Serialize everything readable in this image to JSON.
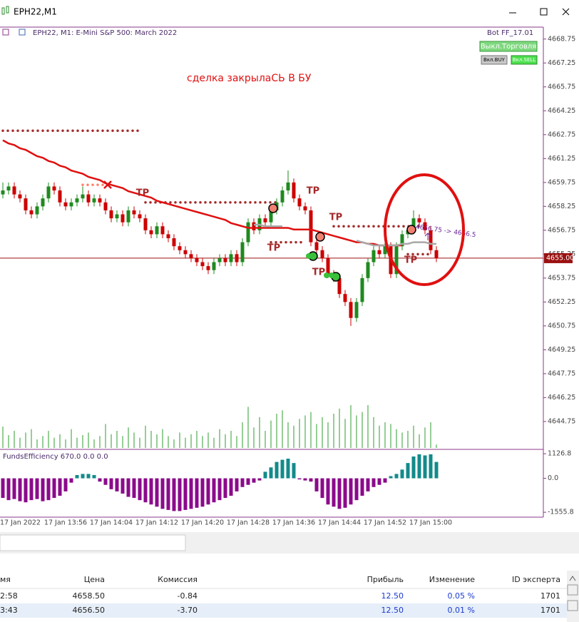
{
  "window": {
    "title": "EPH22,M1"
  },
  "chart_data": {
    "type": "candlestick",
    "title": "EPH22, M1:  E-Mini S&P 500: March 2022",
    "annotation": "сделка закрылаСЬ В БУ",
    "expert": "Bot FF_17.01",
    "buttons": [
      "Выкл.Торговля",
      "Вкл.BUY",
      "Вкл.SELL"
    ],
    "trade_note": "4656.75 -> 4656.5",
    "tp_labels": [
      "TP",
      "TP",
      "TP",
      "TP",
      "TP",
      "TP"
    ],
    "categories": [
      null,
      null,
      null,
      "17 Jan 2022",
      null,
      null,
      null,
      null,
      null,
      null,
      null,
      "17 Jan 13:56",
      null,
      null,
      null,
      null,
      null,
      null,
      null,
      "17 Jan 14:04",
      null,
      null,
      null,
      null,
      null,
      null,
      null,
      "17 Jan 14:12",
      null,
      null,
      null,
      null,
      null,
      null,
      null,
      "17 Jan 14:20",
      null,
      null,
      null,
      null,
      null,
      null,
      null,
      "17 Jan 14:28",
      null,
      null,
      null,
      null,
      null,
      null,
      null,
      "17 Jan 14:36",
      null,
      null,
      null,
      null,
      null,
      null,
      null,
      "17 Jan 14:44",
      null,
      null,
      null,
      null,
      null,
      null,
      null,
      "17 Jan 14:52",
      null,
      null,
      null,
      null,
      null,
      null,
      null,
      "17 Jan 15:00",
      null
    ],
    "ohlc": [
      [
        4659.0,
        4659.75,
        4658.75,
        4659.25
      ],
      [
        4659.25,
        4659.75,
        4659.0,
        4659.5
      ],
      [
        4659.5,
        4659.75,
        4658.75,
        4659.0
      ],
      [
        4659.0,
        4659.25,
        4658.5,
        4658.75
      ],
      [
        4658.75,
        4659.0,
        4657.75,
        4658.0
      ],
      [
        4658.0,
        4658.25,
        4657.5,
        4657.75
      ],
      [
        4657.75,
        4658.5,
        4657.5,
        4658.25
      ],
      [
        4658.25,
        4659.0,
        4658.0,
        4658.75
      ],
      [
        4658.75,
        4659.75,
        4658.5,
        4659.5
      ],
      [
        4659.5,
        4659.75,
        4659.0,
        4659.25
      ],
      [
        4659.25,
        4659.5,
        4658.25,
        4658.5
      ],
      [
        4658.5,
        4658.75,
        4658.0,
        4658.25
      ],
      [
        4658.25,
        4658.75,
        4658.0,
        4658.5
      ],
      [
        4658.5,
        4659.0,
        4658.25,
        4658.75
      ],
      [
        4658.75,
        4659.5,
        4658.5,
        4659.0
      ],
      [
        4659.0,
        4659.25,
        4658.25,
        4658.5
      ],
      [
        4658.5,
        4659.0,
        4658.25,
        4658.75
      ],
      [
        4658.75,
        4659.0,
        4658.25,
        4658.5
      ],
      [
        4658.5,
        4658.75,
        4657.75,
        4658.0
      ],
      [
        4658.0,
        4658.25,
        4657.25,
        4657.5
      ],
      [
        4657.5,
        4658.0,
        4657.25,
        4657.75
      ],
      [
        4657.75,
        4658.0,
        4657.0,
        4657.25
      ],
      [
        4657.25,
        4658.25,
        4657.0,
        4658.0
      ],
      [
        4658.0,
        4658.25,
        4657.5,
        4657.75
      ],
      [
        4657.75,
        4658.0,
        4657.25,
        4657.5
      ],
      [
        4657.5,
        4657.75,
        4656.5,
        4656.75
      ],
      [
        4656.75,
        4657.0,
        4656.25,
        4656.5
      ],
      [
        4656.5,
        4657.25,
        4656.25,
        4657.0
      ],
      [
        4657.0,
        4657.25,
        4656.25,
        4656.5
      ],
      [
        4656.5,
        4656.75,
        4656.0,
        4656.25
      ],
      [
        4656.25,
        4656.5,
        4655.5,
        4655.75
      ],
      [
        4655.75,
        4656.0,
        4655.25,
        4655.5
      ],
      [
        4655.5,
        4655.75,
        4655.0,
        4655.25
      ],
      [
        4655.25,
        4655.5,
        4654.75,
        4655.0
      ],
      [
        4655.0,
        4655.25,
        4654.5,
        4654.75
      ],
      [
        4654.75,
        4655.0,
        4654.25,
        4654.5
      ],
      [
        4654.5,
        4654.75,
        4654.0,
        4654.25
      ],
      [
        4654.25,
        4655.0,
        4654.0,
        4654.75
      ],
      [
        4654.75,
        4655.25,
        4654.5,
        4655.0
      ],
      [
        4655.0,
        4655.25,
        4654.5,
        4654.75
      ],
      [
        4654.75,
        4655.5,
        4654.5,
        4655.25
      ],
      [
        4655.25,
        4655.5,
        4654.5,
        4654.75
      ],
      [
        4654.75,
        4656.25,
        4654.5,
        4656.0
      ],
      [
        4656.0,
        4657.5,
        4655.75,
        4657.25
      ],
      [
        4657.25,
        4657.5,
        4656.5,
        4656.75
      ],
      [
        4656.75,
        4657.75,
        4656.5,
        4657.5
      ],
      [
        4657.5,
        4657.75,
        4657.0,
        4657.25
      ],
      [
        4657.25,
        4658.25,
        4657.0,
        4658.0
      ],
      [
        4658.0,
        4658.75,
        4657.75,
        4658.5
      ],
      [
        4658.5,
        4659.5,
        4658.25,
        4659.25
      ],
      [
        4659.25,
        4660.5,
        4659.0,
        4659.75
      ],
      [
        4659.75,
        4660.0,
        4658.5,
        4658.75
      ],
      [
        4658.75,
        4659.0,
        4658.0,
        4658.25
      ],
      [
        4658.25,
        4658.5,
        4657.75,
        4658.0
      ],
      [
        4658.0,
        4658.25,
        4655.75,
        4656.0
      ],
      [
        4656.0,
        4656.25,
        4655.25,
        4655.5
      ],
      [
        4655.5,
        4655.75,
        4654.75,
        4655.0
      ],
      [
        4655.0,
        4655.25,
        4653.75,
        4654.0
      ],
      [
        4654.0,
        4654.25,
        4653.5,
        4653.75
      ],
      [
        4653.75,
        4654.0,
        4652.5,
        4652.75
      ],
      [
        4652.75,
        4653.0,
        4652.0,
        4652.25
      ],
      [
        4652.25,
        4652.5,
        4650.75,
        4651.25
      ],
      [
        4651.25,
        4652.5,
        4651.0,
        4652.25
      ],
      [
        4652.25,
        4654.0,
        4652.0,
        4653.75
      ],
      [
        4653.75,
        4655.0,
        4653.5,
        4654.75
      ],
      [
        4654.75,
        4655.75,
        4654.5,
        4655.5
      ],
      [
        4655.5,
        4655.75,
        4655.0,
        4655.25
      ],
      [
        4655.25,
        4656.0,
        4655.0,
        4655.75
      ],
      [
        4655.75,
        4656.0,
        4653.75,
        4654.0
      ],
      [
        4654.0,
        4656.0,
        4653.75,
        4655.75
      ],
      [
        4655.75,
        4656.75,
        4655.5,
        4656.5
      ],
      [
        4656.5,
        4657.0,
        4656.25,
        4656.75
      ],
      [
        4656.75,
        4658.0,
        4656.5,
        4657.5
      ],
      [
        4657.5,
        4657.75,
        4657.0,
        4657.25
      ],
      [
        4657.25,
        4657.5,
        4656.5,
        4656.75
      ],
      [
        4656.75,
        4657.0,
        4655.25,
        4655.5
      ],
      [
        4655.5,
        4655.75,
        4654.75,
        4655.0
      ]
    ],
    "up_color": "#1f8a1f",
    "down_color": "#cc0000",
    "ylim": [
      4643.0,
      4669.5
    ],
    "yticks": [
      4668.75,
      4667.25,
      4665.75,
      4664.25,
      4662.75,
      4661.25,
      4659.75,
      4658.25,
      4656.75,
      4655.25,
      4653.75,
      4652.25,
      4650.75,
      4649.25,
      4647.75,
      4646.25,
      4644.75
    ],
    "current_price": {
      "value": 4655,
      "label": "4655.00"
    },
    "ma": {
      "color": "#e01010",
      "values": [
        4662.4,
        4662.2,
        4662.1,
        4661.9,
        4661.8,
        4661.6,
        4661.4,
        4661.3,
        4661.1,
        4661.0,
        4660.8,
        4660.7,
        4660.5,
        4660.4,
        4660.3,
        4660.1,
        4660.0,
        4659.9,
        4659.7,
        4659.6,
        4659.5,
        4659.4,
        4659.2,
        4659.1,
        4659.0,
        4658.9,
        4658.8,
        4658.6,
        4658.5,
        4658.4,
        4658.3,
        4658.2,
        4658.1,
        4658.0,
        4657.9,
        4657.8,
        4657.7,
        4657.6,
        4657.5,
        4657.4,
        4657.2,
        4657.1,
        4657.0,
        4656.9,
        4656.9,
        4656.9,
        4656.9,
        4656.9,
        4656.9,
        4656.9,
        4656.9,
        4656.8,
        4656.8,
        4656.8,
        4656.8,
        4656.7,
        4656.6,
        4656.5,
        4656.4,
        4656.3,
        4656.2,
        4656.1,
        4656.0,
        4656.0,
        4655.9,
        4655.9,
        4655.8,
        4655.8,
        4655.8,
        4655.8,
        4655.8,
        null,
        null,
        null,
        null,
        null,
        null
      ]
    },
    "trail": {
      "color": "#a8a8a8",
      "values": [
        null,
        null,
        null,
        null,
        null,
        null,
        null,
        null,
        null,
        null,
        null,
        null,
        null,
        null,
        null,
        null,
        null,
        null,
        null,
        null,
        null,
        null,
        null,
        null,
        null,
        null,
        null,
        null,
        null,
        null,
        null,
        null,
        null,
        null,
        null,
        null,
        null,
        null,
        null,
        null,
        null,
        null,
        null,
        null,
        4657.1,
        4657.1,
        4657.0,
        4657.0,
        4657.0,
        4657.0,
        null,
        null,
        null,
        null,
        null,
        null,
        null,
        null,
        null,
        null,
        null,
        null,
        4656.1,
        4656.0,
        4655.9,
        4655.8,
        4655.8,
        4655.8,
        4655.8,
        4655.8,
        4655.9,
        4655.9,
        4656.0,
        4656.0,
        4656.0,
        4655.9,
        4655.9
      ]
    },
    "levels": [
      {
        "price": 4663.0,
        "from": 0,
        "to": 24,
        "color": "#a52a2a"
      },
      {
        "price": 4658.5,
        "from": 25,
        "to": 48,
        "color": "#a52a2a"
      },
      {
        "price": 4656.0,
        "from": 47,
        "to": 53,
        "color": "#a52a2a"
      },
      {
        "price": 4657.0,
        "from": 58,
        "to": 73,
        "color": "#a52a2a"
      },
      {
        "price": 4655.25,
        "from": 71,
        "to": 75,
        "color": "#a52a2a"
      },
      {
        "price": 4659.6,
        "from": 14,
        "to": 18,
        "color": "#ff7f66"
      }
    ],
    "volume": {
      "color": "#2e9e2e",
      "values": [
        25,
        15,
        20,
        12,
        18,
        22,
        10,
        14,
        20,
        12,
        16,
        10,
        22,
        12,
        15,
        18,
        10,
        14,
        28,
        16,
        20,
        14,
        24,
        18,
        12,
        26,
        20,
        16,
        22,
        14,
        10,
        18,
        12,
        16,
        20,
        14,
        18,
        12,
        22,
        16,
        20,
        14,
        30,
        48,
        24,
        36,
        20,
        32,
        40,
        44,
        30,
        26,
        34,
        38,
        42,
        28,
        36,
        30,
        40,
        46,
        34,
        50,
        38,
        42,
        50,
        36,
        26,
        30,
        28,
        22,
        18,
        20,
        26,
        16,
        24,
        30,
        4
      ]
    },
    "indicator": {
      "title": "FundsEfficiency 670.0 0.0 0.0",
      "pos_color": "#138a8a",
      "neg_color": "#8b0a8b",
      "ylim": [
        -1780,
        1260
      ],
      "yticks": [
        1126.8,
        {
          "value": 0,
          "label": "0.0"
        },
        -1555.8
      ],
      "values": [
        -900,
        -1000,
        -950,
        -1050,
        -1100,
        -1000,
        -950,
        -1050,
        -1000,
        -900,
        -800,
        -600,
        -200,
        150,
        200,
        200,
        150,
        -150,
        -300,
        -500,
        -600,
        -700,
        -850,
        -900,
        -1000,
        -1100,
        -1200,
        -1300,
        -1400,
        -1450,
        -1500,
        -1500,
        -1450,
        -1400,
        -1350,
        -1300,
        -1200,
        -1100,
        -1000,
        -900,
        -800,
        -600,
        -400,
        -300,
        -200,
        -100,
        300,
        500,
        750,
        850,
        900,
        700,
        -50,
        -100,
        -150,
        -600,
        -900,
        -1200,
        -1300,
        -1400,
        -1350,
        -1200,
        -1000,
        -800,
        -600,
        -400,
        -300,
        -200,
        100,
        200,
        400,
        700,
        1000,
        1100,
        1050,
        1100,
        750
      ]
    }
  },
  "table": {
    "headers": [
      "мя",
      "Цена",
      "Комиссия",
      "Прибыль",
      "Изменение",
      "ID эксперта"
    ],
    "rows": [
      [
        "2:58",
        "4658.50",
        "-0.84",
        "12.50",
        "0.05 %",
        "1701"
      ],
      [
        "3:43",
        "4656.50",
        "-3.70",
        "12.50",
        "0.01 %",
        "1701"
      ]
    ]
  }
}
